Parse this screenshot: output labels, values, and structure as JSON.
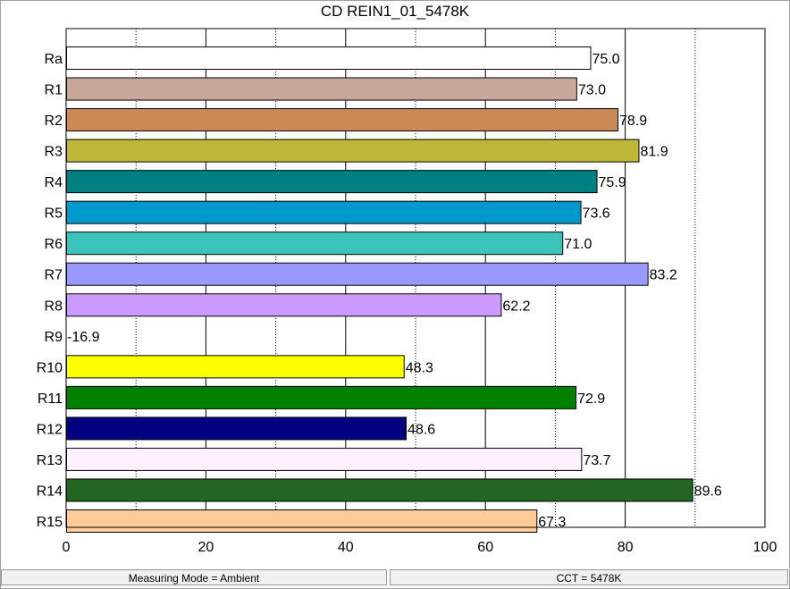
{
  "window": {
    "title": "CD REIN1_01_5478K"
  },
  "chart_data": {
    "type": "bar",
    "orientation": "horizontal",
    "title": "CD REIN1_01_5478K",
    "xlabel": "",
    "ylabel": "",
    "xlim": [
      0,
      100
    ],
    "x_ticks": [
      0,
      20,
      40,
      60,
      80,
      100
    ],
    "grid": "vertical, solid at 20-step ticks, dotted at midpoints",
    "categories": [
      "Ra",
      "R1",
      "R2",
      "R3",
      "R4",
      "R5",
      "R6",
      "R7",
      "R8",
      "R9",
      "R10",
      "R11",
      "R12",
      "R13",
      "R14",
      "R15"
    ],
    "values": [
      75.0,
      73.0,
      78.9,
      81.9,
      75.9,
      73.6,
      71.0,
      83.2,
      62.2,
      -16.9,
      48.3,
      72.9,
      48.6,
      73.7,
      89.6,
      67.3
    ],
    "value_labels": [
      "75.0",
      "73.0",
      "78.9",
      "81.9",
      "75.9",
      "73.6",
      "71.0",
      "83.2",
      "62.2",
      "-16.9",
      "48.3",
      "72.9",
      "48.6",
      "73.7",
      "89.6",
      "67.3"
    ],
    "colors": [
      "#ffffff",
      "#c8a898",
      "#cc8855",
      "#bfb737",
      "#008080",
      "#0099cc",
      "#3cc4bc",
      "#9999ff",
      "#cc99ff",
      "#d0d0d0",
      "#ffff00",
      "#008000",
      "#000080",
      "#fff0ff",
      "#226622",
      "#ffcc99"
    ]
  },
  "status_bar": {
    "measuring_mode": "Measuring Mode = Ambient",
    "cct": "CCT = 5478K"
  }
}
